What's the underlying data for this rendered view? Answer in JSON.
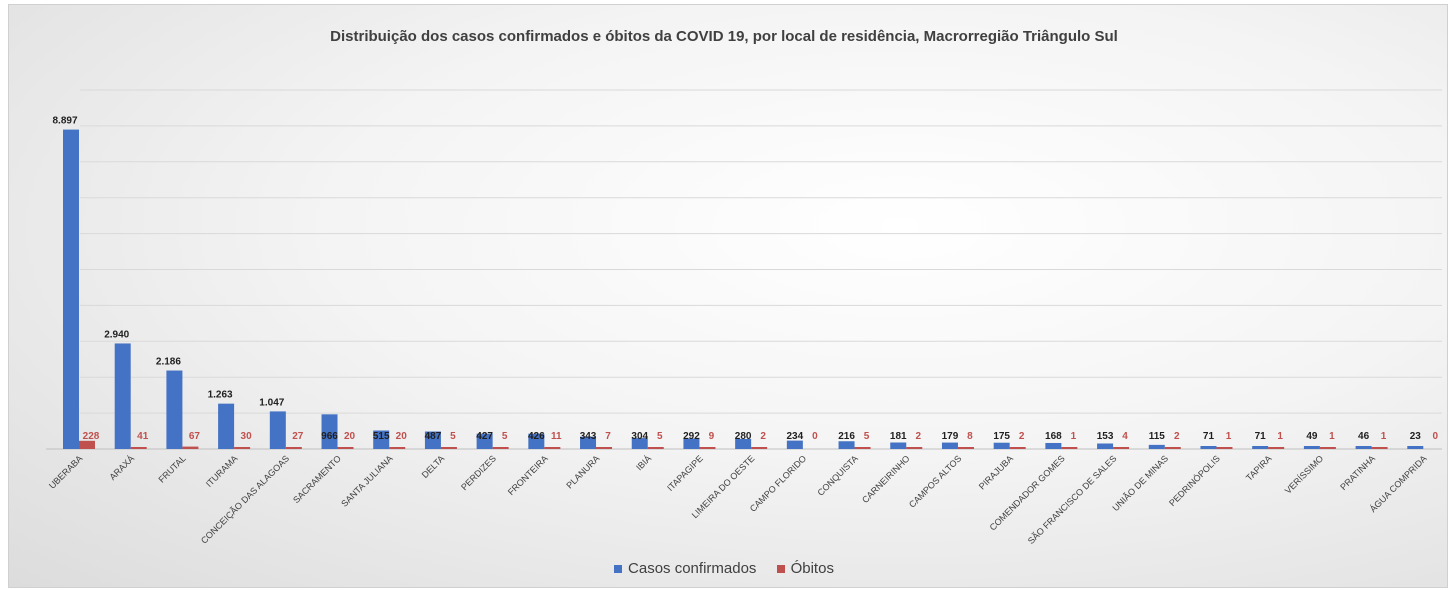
{
  "chart_data": {
    "type": "bar",
    "title": "Distribuição dos casos confirmados e óbitos da COVID 19, por local de residência, Macrorregião Triângulo Sul",
    "xlabel": "",
    "ylabel": "",
    "ylim": [
      0,
      10000
    ],
    "grid": true,
    "legend": "bottom",
    "categories": [
      "UBERABA",
      "ARAXÁ",
      "FRUTAL",
      "ITURAMA",
      "CONCEIÇÃO DAS ALAGOAS",
      "SACRAMENTO",
      "SANTA JULIANA",
      "DELTA",
      "PERDIZES",
      "FRONTEIRA",
      "PLANURA",
      "IBIÁ",
      "ITAPAGIPE",
      "LIMEIRA DO OESTE",
      "CAMPO FLORIDO",
      "CONQUISTA",
      "CARNEIRINHO",
      "CAMPOS ALTOS",
      "PIRAJUBA",
      "COMENDADOR GOMES",
      "SÃO FRANCISCO DE SALES",
      "UNIÃO DE MINAS",
      "PEDRINÓPOLIS",
      "TAPIRA",
      "VERÍSSIMO",
      "PRATINHA",
      "ÁGUA COMPRIDA"
    ],
    "series": [
      {
        "name": "Casos confirmados",
        "color": "#4472c4",
        "values": [
          8897,
          2940,
          2186,
          1263,
          1047,
          966,
          515,
          487,
          427,
          426,
          343,
          304,
          292,
          280,
          234,
          216,
          181,
          179,
          175,
          168,
          153,
          115,
          71,
          71,
          49,
          46,
          23
        ],
        "labels": [
          "8.897",
          "2.940",
          "2.186",
          "1.263",
          "1.047",
          "966",
          "515",
          "487",
          "427",
          "426",
          "343",
          "304",
          "292",
          "280",
          "234",
          "216",
          "181",
          "179",
          "175",
          "168",
          "153",
          "115",
          "71",
          "71",
          "49",
          "46",
          "23"
        ]
      },
      {
        "name": "Óbitos",
        "color": "#c0504d",
        "values": [
          228,
          41,
          67,
          30,
          27,
          20,
          20,
          5,
          5,
          11,
          7,
          5,
          9,
          2,
          0,
          5,
          2,
          8,
          2,
          1,
          4,
          2,
          1,
          1,
          1,
          1,
          0
        ],
        "labels": [
          "228",
          "41",
          "67",
          "30",
          "27",
          "20",
          "20",
          "5",
          "5",
          "11",
          "7",
          "5",
          "9",
          "2",
          "0",
          "5",
          "2",
          "8",
          "2",
          "1",
          "4",
          "2",
          "1",
          "1",
          "1",
          "1",
          "0"
        ]
      }
    ]
  }
}
